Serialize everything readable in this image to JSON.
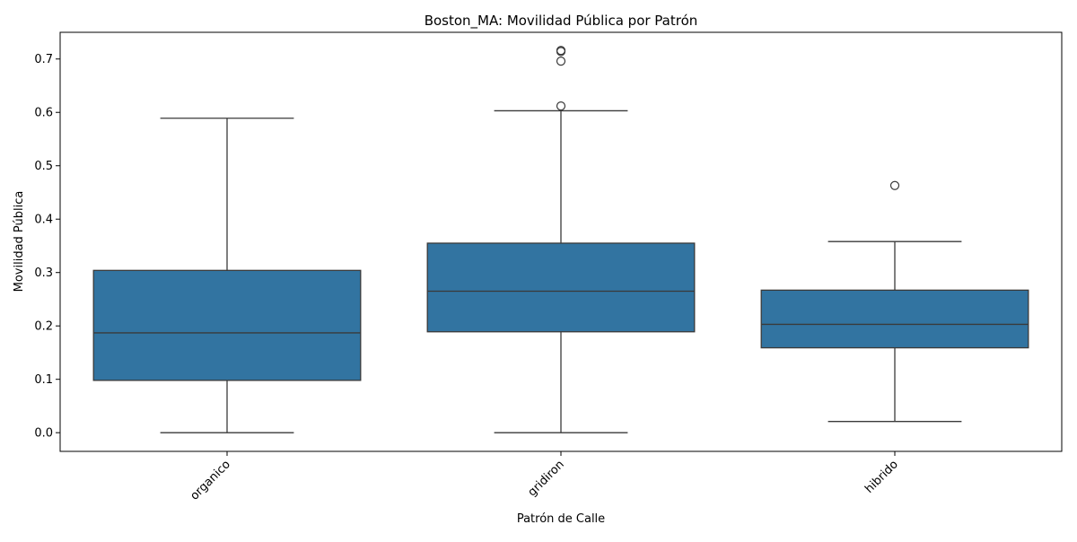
{
  "chart_data": {
    "type": "box",
    "title": "Boston_MA: Movilidad Pública por Patrón",
    "xlabel": "Patrón de Calle",
    "ylabel": "Movilidad Pública",
    "ylim": [
      -0.035,
      0.75
    ],
    "yticks": [
      0.0,
      0.1,
      0.2,
      0.3,
      0.4,
      0.5,
      0.6,
      0.7
    ],
    "ytick_labels": [
      "0.0",
      "0.1",
      "0.2",
      "0.3",
      "0.4",
      "0.5",
      "0.6",
      "0.7"
    ],
    "categories": [
      "organico",
      "gridiron",
      "hibrido"
    ],
    "box_color": "#3274a1",
    "line_color": "#3a3a3a",
    "grid": false,
    "boxes": [
      {
        "category": "organico",
        "whisker_low": 0.0,
        "q1": 0.098,
        "median": 0.187,
        "q3": 0.304,
        "whisker_high": 0.589,
        "outliers": []
      },
      {
        "category": "gridiron",
        "whisker_low": 0.0,
        "q1": 0.189,
        "median": 0.265,
        "q3": 0.355,
        "whisker_high": 0.603,
        "outliers": [
          0.612,
          0.696,
          0.714,
          0.716
        ]
      },
      {
        "category": "hibrido",
        "whisker_low": 0.021,
        "q1": 0.159,
        "median": 0.203,
        "q3": 0.267,
        "whisker_high": 0.358,
        "outliers": [
          0.463
        ]
      }
    ]
  }
}
